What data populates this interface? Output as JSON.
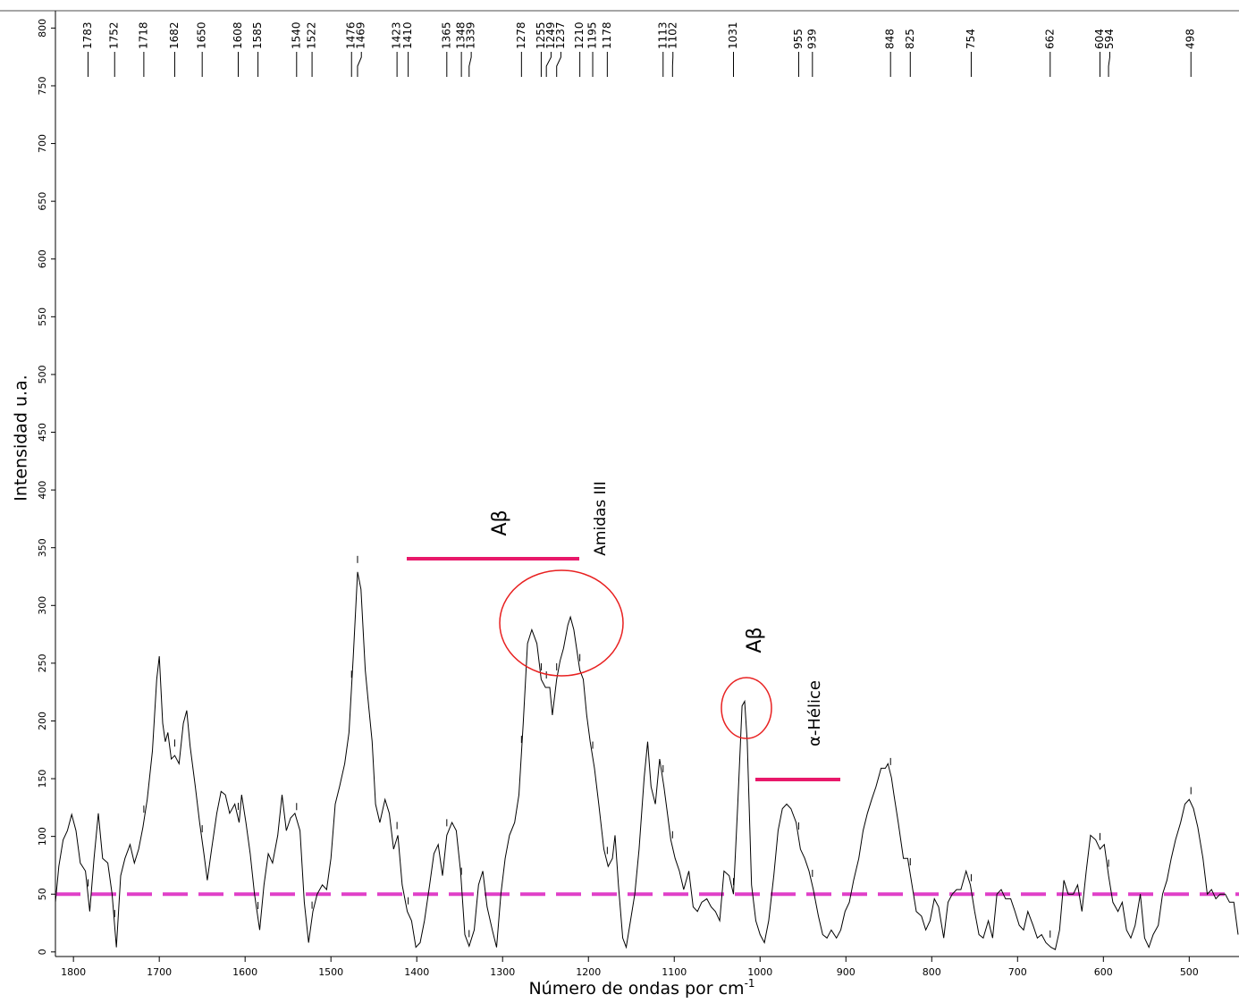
{
  "chart_data": {
    "type": "line",
    "x_label": "Número de ondas por cm",
    "x_label_superscript": "-1",
    "y_label": "Intensidad u.a.",
    "xlim": [
      1821,
      442
    ],
    "ylim": [
      -4,
      815
    ],
    "xticks": [
      1800,
      1700,
      1600,
      1500,
      1400,
      1300,
      1200,
      1100,
      1000,
      900,
      800,
      700,
      600,
      500
    ],
    "yticks": [
      0,
      50,
      100,
      150,
      200,
      250,
      300,
      350,
      400,
      450,
      500,
      550,
      600,
      650,
      700,
      750,
      800
    ],
    "color": "#000000",
    "baseline": 50,
    "baseline_color": "#e040c8",
    "peaks": [
      1783,
      1752,
      1718,
      1682,
      1650,
      1608,
      1585,
      1540,
      1522,
      1476,
      1469,
      1423,
      1410,
      1365,
      1348,
      1339,
      1278,
      1255,
      1249,
      1237,
      1210,
      1195,
      1178,
      1113,
      1102,
      1031,
      955,
      939,
      848,
      825,
      754,
      662,
      604,
      594,
      498
    ],
    "annotations": [
      "Aβ",
      "Amidas III",
      "Aβ",
      "α-Hélice"
    ],
    "x": [
      1821,
      1817,
      1812,
      1807,
      1802,
      1797,
      1792,
      1786,
      1781,
      1776,
      1771,
      1766,
      1760,
      1755,
      1750,
      1745,
      1740,
      1734,
      1729,
      1724,
      1719,
      1714,
      1708,
      1703,
      1700,
      1696,
      1693,
      1690,
      1686,
      1682,
      1677,
      1672,
      1668,
      1664,
      1658,
      1653,
      1648,
      1644,
      1639,
      1633,
      1628,
      1623,
      1618,
      1612,
      1607,
      1604,
      1599,
      1594,
      1589,
      1583,
      1578,
      1573,
      1568,
      1562,
      1557,
      1552,
      1547,
      1542,
      1536,
      1531,
      1526,
      1521,
      1516,
      1510,
      1505,
      1500,
      1495,
      1490,
      1484,
      1479,
      1474,
      1469,
      1465,
      1460,
      1456,
      1452,
      1448,
      1443,
      1437,
      1432,
      1427,
      1422,
      1417,
      1411,
      1406,
      1401,
      1396,
      1391,
      1385,
      1380,
      1375,
      1370,
      1365,
      1359,
      1354,
      1349,
      1344,
      1339,
      1333,
      1328,
      1323,
      1318,
      1312,
      1307,
      1302,
      1297,
      1292,
      1286,
      1281,
      1276,
      1271,
      1266,
      1260,
      1255,
      1250,
      1245,
      1242,
      1237,
      1233,
      1229,
      1224,
      1221,
      1217,
      1210,
      1206,
      1202,
      1198,
      1193,
      1188,
      1182,
      1177,
      1172,
      1169,
      1165,
      1160,
      1156,
      1151,
      1146,
      1141,
      1135,
      1131,
      1127,
      1122,
      1117,
      1112,
      1108,
      1104,
      1099,
      1094,
      1089,
      1083,
      1078,
      1073,
      1068,
      1062,
      1057,
      1052,
      1047,
      1042,
      1036,
      1031,
      1026,
      1021,
      1018,
      1015,
      1010,
      1005,
      1000,
      995,
      990,
      984,
      979,
      974,
      969,
      964,
      958,
      953,
      948,
      943,
      938,
      932,
      927,
      922,
      917,
      911,
      906,
      901,
      896,
      891,
      885,
      880,
      875,
      870,
      865,
      859,
      854,
      851,
      847,
      844,
      839,
      833,
      828,
      823,
      818,
      812,
      807,
      802,
      797,
      792,
      786,
      781,
      776,
      771,
      766,
      760,
      755,
      750,
      745,
      740,
      734,
      729,
      724,
      719,
      714,
      708,
      703,
      698,
      693,
      688,
      682,
      677,
      672,
      667,
      661,
      656,
      651,
      646,
      641,
      635,
      630,
      625,
      620,
      615,
      609,
      604,
      599,
      594,
      589,
      583,
      578,
      573,
      568,
      563,
      557,
      552,
      547,
      542,
      536,
      531,
      526,
      521,
      516,
      510,
      505,
      500,
      495,
      490,
      484,
      479,
      474,
      469,
      464,
      458,
      453,
      448,
      443
    ],
    "values": [
      43,
      74,
      97,
      105,
      119,
      105,
      77,
      70,
      35,
      81,
      120,
      81,
      77,
      50,
      4,
      66,
      81,
      93,
      77,
      89,
      108,
      132,
      174,
      236,
      256,
      198,
      182,
      190,
      167,
      170,
      163,
      198,
      209,
      178,
      143,
      112,
      85,
      62,
      89,
      120,
      139,
      136,
      120,
      128,
      112,
      136,
      112,
      85,
      50,
      19,
      58,
      85,
      77,
      101,
      136,
      105,
      116,
      120,
      105,
      43,
      8,
      35,
      50,
      58,
      54,
      81,
      128,
      143,
      163,
      190,
      256,
      329,
      314,
      244,
      213,
      182,
      128,
      112,
      132,
      120,
      89,
      101,
      58,
      35,
      27,
      4,
      8,
      27,
      58,
      85,
      93,
      66,
      101,
      112,
      105,
      70,
      15,
      5,
      19,
      58,
      70,
      39,
      19,
      4,
      50,
      81,
      101,
      112,
      136,
      198,
      267,
      279,
      267,
      236,
      229,
      229,
      205,
      236,
      252,
      263,
      283,
      290,
      279,
      244,
      236,
      205,
      182,
      159,
      128,
      89,
      74,
      81,
      101,
      58,
      12,
      4,
      27,
      50,
      89,
      151,
      182,
      143,
      128,
      167,
      143,
      120,
      97,
      81,
      70,
      54,
      70,
      39,
      35,
      43,
      46,
      39,
      35,
      27,
      70,
      66,
      50,
      128,
      213,
      217,
      182,
      58,
      27,
      15,
      8,
      27,
      66,
      105,
      124,
      128,
      124,
      112,
      89,
      81,
      70,
      54,
      31,
      15,
      12,
      19,
      12,
      19,
      35,
      43,
      62,
      81,
      105,
      120,
      132,
      143,
      159,
      159,
      163,
      151,
      136,
      112,
      81,
      81,
      58,
      35,
      31,
      19,
      27,
      46,
      39,
      12,
      43,
      50,
      54,
      54,
      70,
      58,
      35,
      15,
      12,
      27,
      12,
      50,
      54,
      46,
      46,
      35,
      23,
      19,
      35,
      23,
      12,
      15,
      8,
      4,
      2,
      19,
      62,
      50,
      50,
      58,
      35,
      70,
      101,
      97,
      89,
      93,
      66,
      43,
      35,
      43,
      19,
      12,
      23,
      50,
      12,
      4,
      15,
      23,
      50,
      62,
      81,
      97,
      112,
      128,
      132,
      124,
      108,
      81,
      50,
      54,
      46,
      50,
      50,
      43,
      43,
      15
    ]
  }
}
